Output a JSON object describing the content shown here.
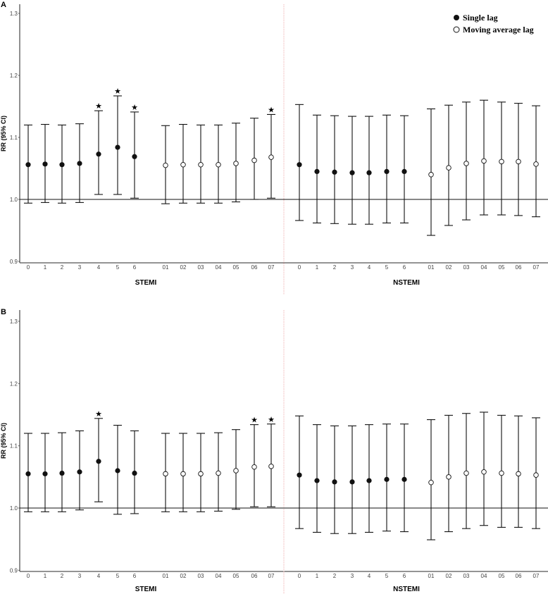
{
  "chart_data": [
    {
      "panel": "A",
      "type": "scatter",
      "subtype": "point-with-error-bars",
      "ylabel": "RR (95% CI)",
      "ylim": [
        0.9,
        1.3
      ],
      "yticks": [
        "0.9",
        "1.0",
        "1.1",
        "1.2",
        "1.3"
      ],
      "reference_line": 1.0,
      "legend": [
        {
          "marker": "filled-circle",
          "label": "Single lag"
        },
        {
          "marker": "open-circle",
          "label": "Moving average lag"
        }
      ],
      "legend_position": "top-right",
      "grid": false,
      "groups": [
        {
          "name": "STEMI",
          "series": [
            {
              "name": "Single lag",
              "marker": "filled",
              "x": [
                "0",
                "1",
                "2",
                "3",
                "4",
                "5",
                "6"
              ],
              "rr": [
                1.056,
                1.057,
                1.056,
                1.058,
                1.073,
                1.084,
                1.069
              ],
              "lower": [
                0.994,
                0.995,
                0.994,
                0.995,
                1.008,
                1.008,
                1.002
              ],
              "upper": [
                1.12,
                1.121,
                1.12,
                1.122,
                1.143,
                1.167,
                1.141
              ],
              "significant": [
                false,
                false,
                false,
                false,
                true,
                true,
                true
              ]
            },
            {
              "name": "Moving average lag",
              "marker": "open",
              "x": [
                "01",
                "02",
                "03",
                "04",
                "05",
                "06",
                "07"
              ],
              "rr": [
                1.055,
                1.056,
                1.056,
                1.056,
                1.058,
                1.063,
                1.068
              ],
              "lower": [
                0.993,
                0.994,
                0.994,
                0.994,
                0.996,
                1.0,
                1.002
              ],
              "upper": [
                1.119,
                1.121,
                1.12,
                1.12,
                1.123,
                1.131,
                1.137
              ],
              "significant": [
                false,
                false,
                false,
                false,
                false,
                false,
                true
              ]
            }
          ]
        },
        {
          "name": "NSTEMI",
          "series": [
            {
              "name": "Single lag",
              "marker": "filled",
              "x": [
                "0",
                "1",
                "2",
                "3",
                "4",
                "5",
                "6"
              ],
              "rr": [
                1.056,
                1.045,
                1.044,
                1.043,
                1.043,
                1.045,
                1.045
              ],
              "lower": [
                0.966,
                0.962,
                0.961,
                0.96,
                0.96,
                0.962,
                0.962
              ],
              "upper": [
                1.153,
                1.136,
                1.135,
                1.134,
                1.134,
                1.136,
                1.135
              ],
              "significant": [
                false,
                false,
                false,
                false,
                false,
                false,
                false
              ]
            },
            {
              "name": "Moving average lag",
              "marker": "open",
              "x": [
                "01",
                "02",
                "03",
                "04",
                "05",
                "06",
                "07"
              ],
              "rr": [
                1.04,
                1.051,
                1.058,
                1.062,
                1.061,
                1.061,
                1.057
              ],
              "lower": [
                0.942,
                0.958,
                0.967,
                0.975,
                0.975,
                0.974,
                0.972
              ],
              "upper": [
                1.146,
                1.152,
                1.157,
                1.16,
                1.157,
                1.155,
                1.151
              ],
              "significant": [
                false,
                false,
                false,
                false,
                false,
                false,
                false
              ]
            }
          ]
        }
      ]
    },
    {
      "panel": "B",
      "type": "scatter",
      "subtype": "point-with-error-bars",
      "ylabel": "RR (95% CI)",
      "ylim": [
        0.9,
        1.3
      ],
      "yticks": [
        "0.9",
        "1.0",
        "1.1",
        "1.2",
        "1.3"
      ],
      "reference_line": 1.0,
      "grid": false,
      "groups": [
        {
          "name": "STEMI",
          "series": [
            {
              "name": "Single lag",
              "marker": "filled",
              "x": [
                "0",
                "1",
                "2",
                "3",
                "4",
                "5",
                "6"
              ],
              "rr": [
                1.055,
                1.055,
                1.056,
                1.058,
                1.075,
                1.06,
                1.056
              ],
              "lower": [
                0.994,
                0.994,
                0.994,
                0.997,
                1.01,
                0.99,
                0.991
              ],
              "upper": [
                1.12,
                1.12,
                1.121,
                1.124,
                1.144,
                1.133,
                1.124
              ],
              "significant": [
                false,
                false,
                false,
                false,
                true,
                false,
                false
              ]
            },
            {
              "name": "Moving average lag",
              "marker": "open",
              "x": [
                "01",
                "02",
                "03",
                "04",
                "05",
                "06",
                "07"
              ],
              "rr": [
                1.055,
                1.055,
                1.055,
                1.056,
                1.06,
                1.066,
                1.067
              ],
              "lower": [
                0.994,
                0.994,
                0.994,
                0.995,
                0.998,
                1.002,
                1.002
              ],
              "upper": [
                1.12,
                1.12,
                1.12,
                1.121,
                1.126,
                1.134,
                1.135
              ],
              "significant": [
                false,
                false,
                false,
                false,
                false,
                true,
                true
              ]
            }
          ]
        },
        {
          "name": "NSTEMI",
          "series": [
            {
              "name": "Single lag",
              "marker": "filled",
              "x": [
                "0",
                "1",
                "2",
                "3",
                "4",
                "5",
                "6"
              ],
              "rr": [
                1.053,
                1.044,
                1.042,
                1.042,
                1.044,
                1.046,
                1.046
              ],
              "lower": [
                0.967,
                0.961,
                0.959,
                0.959,
                0.961,
                0.963,
                0.962
              ],
              "upper": [
                1.148,
                1.134,
                1.132,
                1.132,
                1.134,
                1.135,
                1.135
              ],
              "significant": [
                false,
                false,
                false,
                false,
                false,
                false,
                false
              ]
            },
            {
              "name": "Moving average lag",
              "marker": "open",
              "x": [
                "01",
                "02",
                "03",
                "04",
                "05",
                "06",
                "07"
              ],
              "rr": [
                1.041,
                1.05,
                1.056,
                1.058,
                1.056,
                1.055,
                1.053
              ],
              "lower": [
                0.949,
                0.962,
                0.967,
                0.972,
                0.969,
                0.969,
                0.967
              ],
              "upper": [
                1.142,
                1.149,
                1.152,
                1.154,
                1.149,
                1.148,
                1.145
              ],
              "significant": [
                false,
                false,
                false,
                false,
                false,
                false,
                false
              ]
            }
          ]
        }
      ]
    }
  ],
  "labels": {
    "panel_a": "A",
    "panel_b": "B",
    "ylabel": "RR (95% CI)",
    "group_stemi": "STEMI",
    "group_nstemi": "NSTEMI",
    "legend_single": "Single lag",
    "legend_moving": "Moving average lag",
    "significance_marker": "★"
  },
  "colors": {
    "axis": "#555555",
    "ink": "#111111",
    "divider": "#f4c6c6",
    "tick_text": "#444444"
  }
}
